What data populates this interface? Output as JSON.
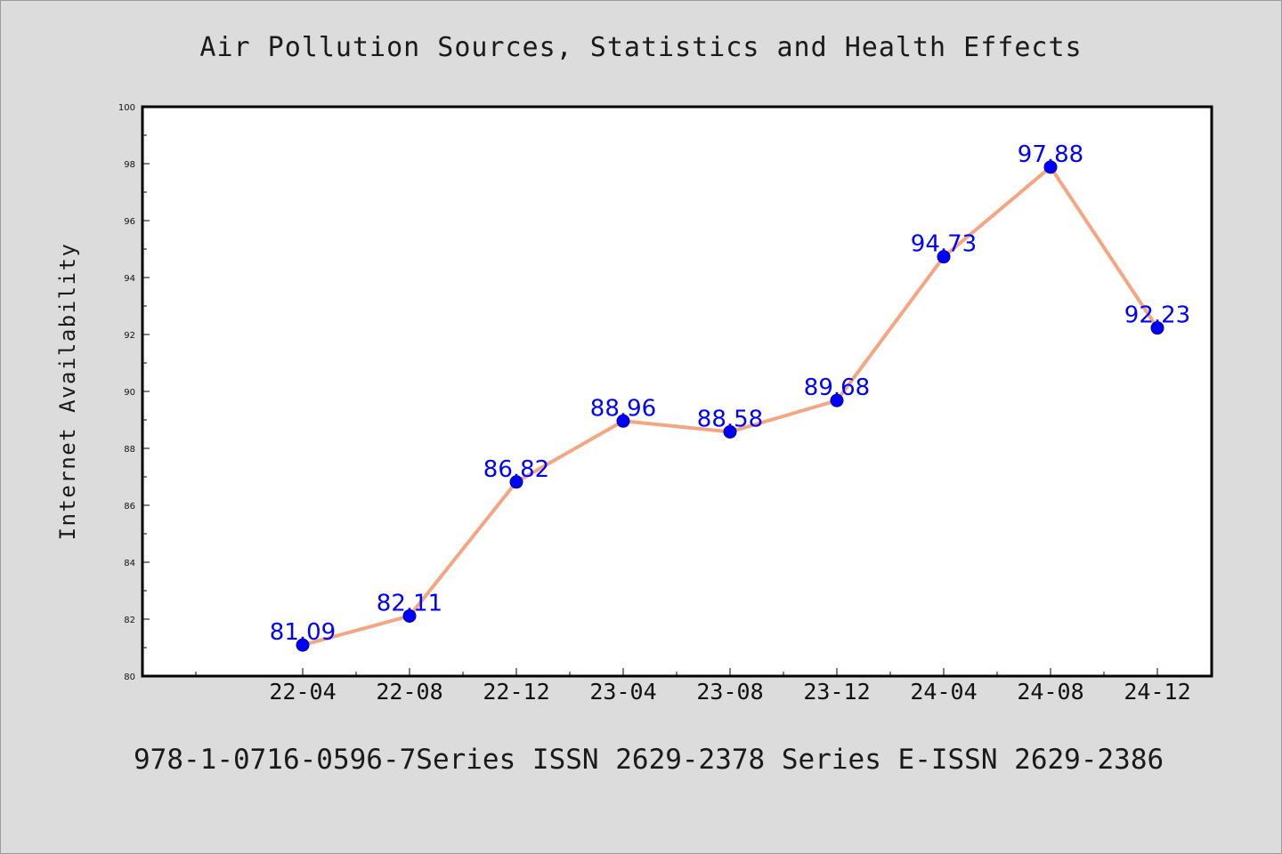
{
  "chart_data": {
    "type": "line",
    "title": "Air Pollution Sources, Statistics and Health Effects",
    "ylabel": "Internet Availability",
    "xlabel": "",
    "footer": "978-1-0716-0596-7Series ISSN 2629-2378 Series E-ISSN 2629-2386",
    "categories": [
      "22-04",
      "22-08",
      "22-12",
      "23-04",
      "23-08",
      "23-12",
      "24-04",
      "24-08",
      "24-12"
    ],
    "values": [
      81.09,
      82.11,
      86.82,
      88.96,
      88.58,
      89.68,
      94.73,
      97.88,
      92.23
    ],
    "data_labels": [
      "81.09",
      "82.11",
      "86.82",
      "88.96",
      "88.58",
      "89.68",
      "94.73",
      "97.88",
      "92.23"
    ],
    "ylim": [
      80,
      100
    ],
    "yticks": [
      "80",
      "82",
      "84",
      "86",
      "88",
      "90",
      "92",
      "94",
      "96",
      "98",
      "100"
    ],
    "grid": false,
    "legend": "none",
    "colors": {
      "line": "#f4a582",
      "marker": "#0000ff",
      "marker_edge": "#00008b",
      "data_label": "#0000ff",
      "background": "#dcdcdc",
      "plot_background": "#ffffff"
    }
  }
}
